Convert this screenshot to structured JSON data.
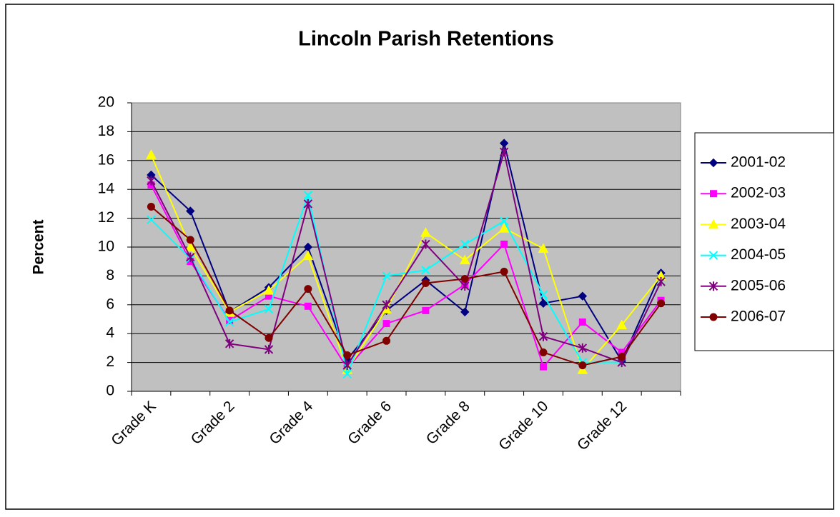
{
  "chart_data": {
    "type": "line",
    "title": "Lincoln Parish Retentions",
    "y_label": "Percent",
    "categories": [
      "Grade K",
      null,
      "Grade 2",
      null,
      "Grade 4",
      null,
      "Grade 6",
      null,
      "Grade 8",
      null,
      "Grade 10",
      null,
      "Grade 12",
      null
    ],
    "ylim": [
      0,
      20
    ],
    "yticks": [
      0,
      2,
      4,
      6,
      8,
      10,
      12,
      14,
      16,
      18,
      20
    ],
    "grid": true,
    "legend": "right",
    "series": [
      {
        "name": "2001-02",
        "color": "#000080",
        "marker": "diamond",
        "values": [
          15.0,
          12.5,
          5.5,
          7.2,
          10.0,
          2.2,
          5.6,
          7.7,
          5.5,
          17.2,
          6.1,
          6.6,
          2.1,
          8.2
        ]
      },
      {
        "name": "2002-03",
        "color": "#ff00ff",
        "marker": "square",
        "values": [
          14.3,
          9.0,
          4.9,
          6.6,
          5.9,
          1.6,
          4.7,
          5.6,
          7.4,
          10.2,
          1.7,
          4.8,
          2.7,
          6.3
        ]
      },
      {
        "name": "2003-04",
        "color": "#ffff00",
        "marker": "triangle",
        "values": [
          16.4,
          10.0,
          5.5,
          7.0,
          9.4,
          1.5,
          5.7,
          11.0,
          9.1,
          11.3,
          9.9,
          1.5,
          4.6,
          8.0
        ]
      },
      {
        "name": "2004-05",
        "color": "#00ffff",
        "marker": "x",
        "values": [
          11.9,
          9.2,
          4.8,
          5.7,
          13.6,
          1.2,
          8.0,
          8.4,
          10.2,
          11.8,
          6.7,
          2.0,
          2.0,
          7.6
        ]
      },
      {
        "name": "2005-06",
        "color": "#800080",
        "marker": "star",
        "values": [
          14.6,
          9.3,
          3.3,
          2.9,
          13.0,
          1.8,
          6.0,
          10.2,
          7.3,
          16.6,
          3.8,
          3.0,
          2.0,
          7.6
        ]
      },
      {
        "name": "2006-07",
        "color": "#800000",
        "marker": "circle",
        "values": [
          12.8,
          10.5,
          5.6,
          3.7,
          7.1,
          2.5,
          3.5,
          7.5,
          7.8,
          8.3,
          2.7,
          1.8,
          2.4,
          6.1
        ]
      }
    ]
  }
}
